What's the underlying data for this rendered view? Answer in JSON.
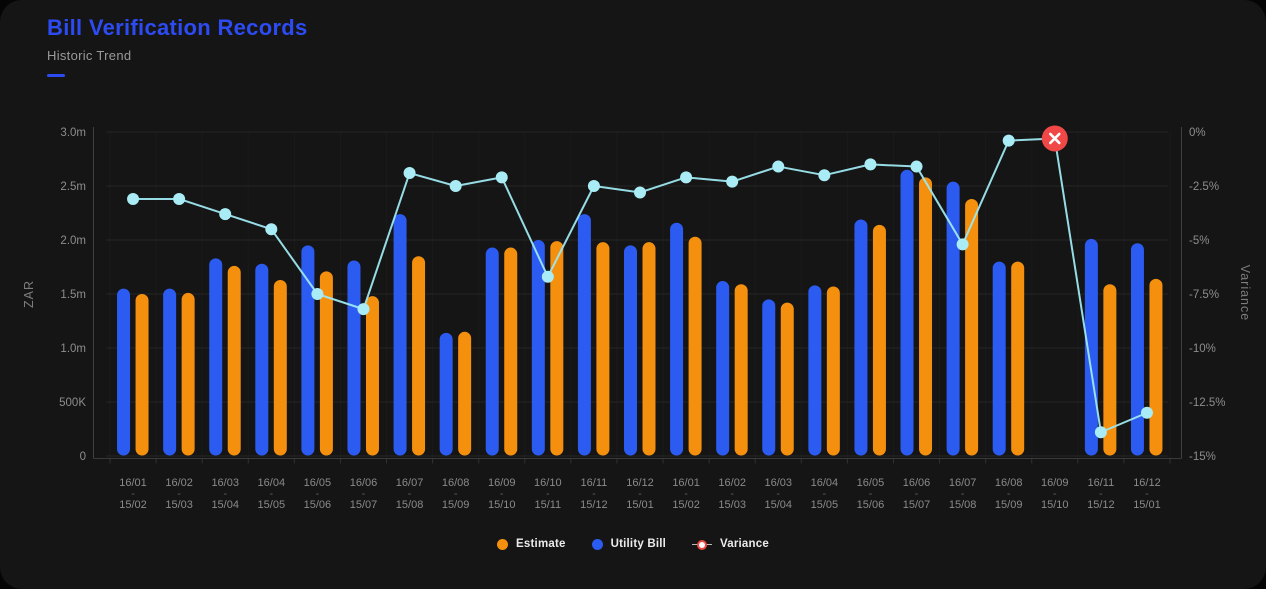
{
  "header": {
    "title": "Bill Verification Records",
    "subtitle": "Historic Trend"
  },
  "colors": {
    "accent": "#2D4BF2",
    "estimate": "#F5900F",
    "utility_bill": "#2C5BF2",
    "variance_line": "#9DE7F0",
    "variance_dot": "#A9ECF5",
    "alert": "#F04747",
    "card_bg": "#151515",
    "page_bg": "#050505",
    "tick_text": "#8d8d8d",
    "axis_title_text": "#7c7c7c"
  },
  "chart_data": {
    "type": "bar+line",
    "title": "Bill Verification Records",
    "subtitle": "Historic Trend",
    "categories": [
      {
        "from": "16/01",
        "to": "15/02"
      },
      {
        "from": "16/02",
        "to": "15/03"
      },
      {
        "from": "16/03",
        "to": "15/04"
      },
      {
        "from": "16/04",
        "to": "15/05"
      },
      {
        "from": "16/05",
        "to": "15/06"
      },
      {
        "from": "16/06",
        "to": "15/07"
      },
      {
        "from": "16/07",
        "to": "15/08"
      },
      {
        "from": "16/08",
        "to": "15/09"
      },
      {
        "from": "16/09",
        "to": "15/10"
      },
      {
        "from": "16/10",
        "to": "15/11"
      },
      {
        "from": "16/11",
        "to": "15/12"
      },
      {
        "from": "16/12",
        "to": "15/01"
      },
      {
        "from": "16/01",
        "to": "15/02"
      },
      {
        "from": "16/02",
        "to": "15/03"
      },
      {
        "from": "16/03",
        "to": "15/04"
      },
      {
        "from": "16/04",
        "to": "15/05"
      },
      {
        "from": "16/05",
        "to": "15/06"
      },
      {
        "from": "16/06",
        "to": "15/07"
      },
      {
        "from": "16/07",
        "to": "15/08"
      },
      {
        "from": "16/08",
        "to": "15/09"
      },
      {
        "from": "16/09",
        "to": "15/10"
      },
      {
        "from": "16/11",
        "to": "15/12"
      },
      {
        "from": "16/12",
        "to": "15/01"
      }
    ],
    "series": [
      {
        "name": "Utility Bill",
        "type": "bar",
        "axis": "left",
        "color_key": "utility_bill",
        "values": [
          1550000,
          1550000,
          1830000,
          1780000,
          1950000,
          1810000,
          2240000,
          1140000,
          1930000,
          2000000,
          2240000,
          1950000,
          2160000,
          1620000,
          1450000,
          1580000,
          2190000,
          2650000,
          2540000,
          1800000,
          null,
          2010000,
          1970000
        ]
      },
      {
        "name": "Estimate",
        "type": "bar",
        "axis": "left",
        "color_key": "estimate",
        "values": [
          1500000,
          1510000,
          1760000,
          1630000,
          1710000,
          1480000,
          1850000,
          1150000,
          1930000,
          1990000,
          1980000,
          1980000,
          2030000,
          1590000,
          1420000,
          1570000,
          2140000,
          2580000,
          2380000,
          1800000,
          null,
          1590000,
          1640000
        ]
      },
      {
        "name": "Variance",
        "type": "line",
        "axis": "right",
        "color_key": "variance_line",
        "values": [
          -3.1,
          -3.1,
          -3.8,
          -4.5,
          -7.5,
          -8.2,
          -1.9,
          -2.5,
          -2.1,
          -6.7,
          -2.5,
          -2.8,
          -2.1,
          -2.3,
          -1.6,
          -2.0,
          -1.5,
          -1.6,
          -5.2,
          -0.4,
          -0.3,
          -13.9,
          -13.0
        ]
      }
    ],
    "left_axis": {
      "title": "ZAR",
      "min": 0,
      "max": 3000000,
      "tick_labels": [
        "3.0m",
        "2.5m",
        "2.0m",
        "1.5m",
        "1.0m",
        "500K",
        "0"
      ]
    },
    "right_axis": {
      "title": "Variance",
      "min": -15,
      "max": 0,
      "tick_labels": [
        "0%",
        "-2.5%",
        "-5%",
        "-7.5%",
        "-10%",
        "-12.5%",
        "-15%"
      ]
    },
    "annotation": {
      "index": 20,
      "type": "alert-x-marker",
      "symbol": "✕"
    },
    "grid": true,
    "legend_position": "bottom-center"
  },
  "legend": {
    "items": [
      {
        "id": "estimate",
        "label": "Estimate",
        "marker": "dot",
        "color_key": "estimate"
      },
      {
        "id": "utility-bill",
        "label": "Utility Bill",
        "marker": "dot",
        "color_key": "utility_bill"
      },
      {
        "id": "variance",
        "label": "Variance",
        "marker": "line-dot",
        "color_key": "alert"
      }
    ]
  }
}
